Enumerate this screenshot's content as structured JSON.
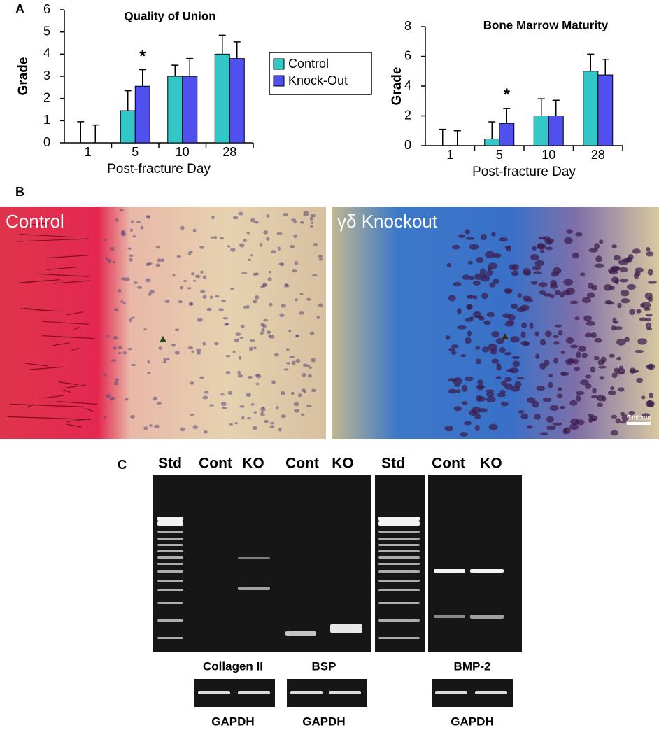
{
  "panels": {
    "a": "A",
    "b": "B",
    "c": "C"
  },
  "chart_data": [
    {
      "type": "bar",
      "title": "Quality of Union",
      "x_label": "Post-fracture Day",
      "y_label": "Grade",
      "categories": [
        "1",
        "5",
        "10",
        "28"
      ],
      "series": [
        {
          "name": "Control",
          "color": "#33c7c7",
          "values": [
            0,
            1.45,
            3.0,
            4.0
          ],
          "errors": [
            0.95,
            0.9,
            0.5,
            0.85
          ]
        },
        {
          "name": "Knock-Out",
          "color": "#5050ee",
          "values": [
            0,
            2.55,
            3.0,
            3.8
          ],
          "errors": [
            0.8,
            0.75,
            0.8,
            0.75
          ]
        }
      ],
      "annotation": "*",
      "ylim": [
        0,
        6
      ],
      "yticks": [
        0,
        1,
        2,
        3,
        4,
        5,
        6
      ]
    },
    {
      "type": "bar",
      "title": "Bone Marrow Maturity",
      "x_label": "Post-fracture Day",
      "y_label": "Grade",
      "categories": [
        "1",
        "5",
        "10",
        "28"
      ],
      "series": [
        {
          "color": "#33c7c7",
          "values": [
            0,
            0.45,
            2.0,
            5.0
          ],
          "errors": [
            1.1,
            1.15,
            1.15,
            1.15
          ]
        },
        {
          "color": "#5050ee",
          "values": [
            0,
            1.5,
            2.0,
            4.75
          ],
          "errors": [
            1.0,
            1.0,
            1.05,
            1.05
          ]
        }
      ],
      "annotation": "*",
      "ylim": [
        0,
        8
      ],
      "yticks": [
        0,
        2,
        4,
        6,
        8
      ]
    }
  ],
  "histology": {
    "left_label": "Control",
    "right_label": "γδ Knockout",
    "scale_bar": "5 micron"
  },
  "gel": {
    "lanes": [
      "Std",
      "Cont",
      "KO",
      "Cont",
      "KO",
      "Std",
      "Cont",
      "KO"
    ],
    "genes": [
      "Collagen II",
      "BSP",
      "BMP-2"
    ],
    "loading": [
      "GAPDH",
      "GAPDH",
      "GAPDH"
    ]
  }
}
